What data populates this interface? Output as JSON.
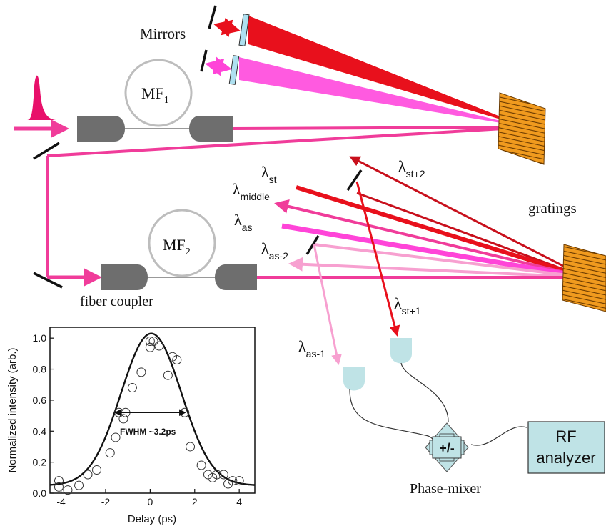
{
  "labels": {
    "mirrors": "Mirrors",
    "mf1_base": "MF",
    "mf1_sub": "1",
    "mf2_base": "MF",
    "mf2_sub": "2",
    "fiber_coupler": "fiber coupler",
    "gratings": "gratings",
    "lambda": "λ",
    "lambda_st_sub": "st",
    "lambda_middle_sub": "middle",
    "lambda_as_sub": "as",
    "lambda_as2_sub": "as-2",
    "lambda_st2_sub": "st+2",
    "lambda_st1_sub": "st+1",
    "lambda_as1_sub": "as-1",
    "phase_mixer": "Phase-mixer",
    "mixer_symbol": "+/-",
    "rf_line1": "RF",
    "rf_line2": "analyzer"
  },
  "colors": {
    "red": "#e8101c",
    "dark_red": "#c8101c",
    "magenta": "#ff44d8",
    "pink": "#f03c9a",
    "light_pink": "#f7a0d0",
    "grating": "#f09a1e",
    "detector": "#bfe3e6",
    "coupler": "#6e6e6e",
    "loop": "#bdbdbd"
  },
  "chart_data": {
    "type": "scatter",
    "xlabel": "Delay (ps)",
    "ylabel": "Normalized intensity (arb.)",
    "xlim": [
      -4.5,
      4.7
    ],
    "ylim": [
      0.0,
      1.07
    ],
    "xticks": [
      -4,
      -2,
      0,
      2,
      4
    ],
    "yticks": [
      0.0,
      0.2,
      0.4,
      0.6,
      0.8,
      1.0
    ],
    "ytick_labels": [
      "0.0",
      "0.2",
      "0.4",
      "0.6",
      "0.8",
      "1.0"
    ],
    "annotation": "FWHM ~3.2ps",
    "fwhm_arrow": {
      "x1": -1.55,
      "x2": 1.55,
      "y": 0.52
    },
    "series": [
      {
        "kind": "points",
        "x": [
          -4.1,
          -4.1,
          -3.7,
          -3.2,
          -2.8,
          -2.4,
          -1.8,
          -1.55,
          -1.4,
          -1.2,
          -1.1,
          -0.8,
          -0.4,
          0.0,
          0.0,
          0.15,
          0.4,
          0.8,
          1.0,
          1.2,
          1.55,
          1.8,
          2.3,
          2.6,
          2.8,
          3.0,
          3.3,
          3.5,
          3.7,
          4.0
        ],
        "y": [
          0.08,
          0.04,
          0.02,
          0.05,
          0.12,
          0.15,
          0.26,
          0.36,
          0.52,
          0.48,
          0.52,
          0.68,
          0.78,
          0.94,
          0.98,
          0.98,
          0.95,
          0.76,
          0.88,
          0.86,
          0.52,
          0.3,
          0.18,
          0.12,
          0.1,
          0.12,
          0.12,
          0.06,
          0.08,
          0.08
        ]
      },
      {
        "kind": "fit",
        "model": "gaussian",
        "amplitude": 0.98,
        "center": 0.05,
        "fwhm": 3.2,
        "offset": 0.05
      }
    ]
  }
}
